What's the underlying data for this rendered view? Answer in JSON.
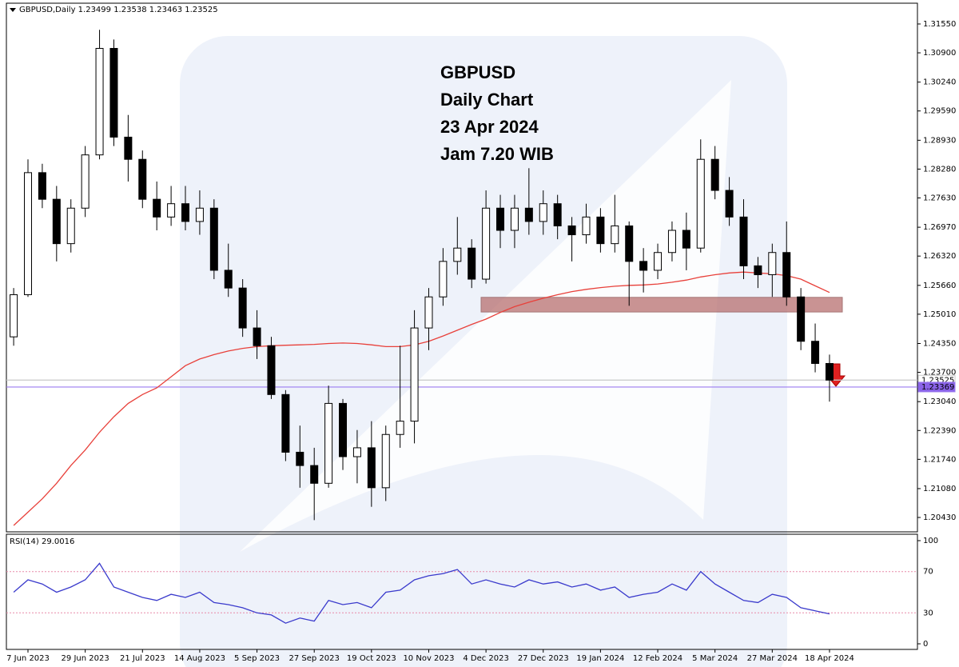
{
  "header": "GBPUSD,Daily  1.23499 1.23538 1.23463 1.23525",
  "chart_data": [
    {
      "type": "candlestick",
      "annotation": [
        "GBPUSD",
        "Daily Chart",
        "23 Apr 2024",
        "Jam 7.20 WIB"
      ],
      "categories": [
        null,
        "7 Jun 2023",
        null,
        null,
        null,
        "29 Jun 2023",
        null,
        null,
        null,
        "21 Jul 2023",
        null,
        null,
        null,
        "14 Aug 2023",
        null,
        null,
        null,
        "5 Sep 2023",
        null,
        null,
        null,
        "27 Sep 2023",
        null,
        null,
        null,
        "19 Oct 2023",
        null,
        null,
        null,
        "10 Nov 2023",
        null,
        null,
        null,
        "4 Dec 2023",
        null,
        null,
        null,
        "27 Dec 2023",
        null,
        null,
        null,
        "19 Jan 2024",
        null,
        null,
        null,
        "12 Feb 2024",
        null,
        null,
        null,
        "5 Mar 2024",
        null,
        null,
        null,
        "27 Mar 2024",
        null,
        null,
        null,
        "18 Apr 2024"
      ],
      "open": [
        1.245,
        1.2545,
        1.282,
        1.276,
        1.266,
        1.274,
        1.286,
        1.31,
        1.29,
        1.285,
        1.276,
        1.272,
        1.275,
        1.271,
        1.274,
        1.26,
        1.256,
        1.247,
        1.243,
        1.232,
        1.219,
        1.216,
        1.212,
        1.23,
        1.218,
        1.22,
        1.211,
        1.223,
        1.226,
        1.247,
        1.254,
        1.262,
        1.265,
        1.258,
        1.274,
        1.269,
        1.274,
        1.271,
        1.275,
        1.27,
        1.268,
        1.272,
        1.266,
        1.27,
        1.262,
        1.26,
        1.264,
        1.269,
        1.265,
        1.285,
        1.278,
        1.272,
        1.261,
        1.259,
        1.264,
        1.254,
        1.244,
        1.239
      ],
      "high": [
        1.256,
        1.285,
        1.284,
        1.279,
        1.276,
        1.288,
        1.3142,
        1.312,
        1.295,
        1.287,
        1.28,
        1.279,
        1.279,
        1.278,
        1.276,
        1.266,
        1.258,
        1.251,
        1.245,
        1.233,
        1.225,
        1.22,
        1.234,
        1.231,
        1.224,
        1.226,
        1.225,
        1.243,
        1.251,
        1.256,
        1.265,
        1.272,
        1.267,
        1.278,
        1.277,
        1.277,
        1.283,
        1.278,
        1.277,
        1.272,
        1.275,
        1.274,
        1.277,
        1.271,
        1.265,
        1.266,
        1.271,
        1.273,
        1.2895,
        1.288,
        1.281,
        1.276,
        1.263,
        1.266,
        1.271,
        1.256,
        1.248,
        1.241
      ],
      "low": [
        1.243,
        1.254,
        1.274,
        1.262,
        1.264,
        1.272,
        1.285,
        1.288,
        1.28,
        1.274,
        1.269,
        1.27,
        1.269,
        1.268,
        1.258,
        1.254,
        1.245,
        1.24,
        1.231,
        1.217,
        1.211,
        1.2037,
        1.211,
        1.215,
        1.212,
        1.2067,
        1.208,
        1.22,
        1.221,
        1.242,
        1.252,
        1.259,
        1.256,
        1.257,
        1.265,
        1.265,
        1.268,
        1.268,
        1.267,
        1.262,
        1.266,
        1.264,
        1.264,
        1.252,
        1.255,
        1.258,
        1.262,
        1.26,
        1.264,
        1.276,
        1.27,
        1.258,
        1.256,
        1.254,
        1.252,
        1.242,
        1.237,
        1.2304
      ],
      "close": [
        1.2545,
        1.282,
        1.276,
        1.266,
        1.274,
        1.286,
        1.31,
        1.29,
        1.285,
        1.276,
        1.272,
        1.275,
        1.271,
        1.274,
        1.26,
        1.256,
        1.247,
        1.243,
        1.232,
        1.219,
        1.216,
        1.212,
        1.23,
        1.218,
        1.22,
        1.211,
        1.223,
        1.226,
        1.247,
        1.254,
        1.262,
        1.265,
        1.258,
        1.274,
        1.269,
        1.274,
        1.271,
        1.275,
        1.27,
        1.268,
        1.272,
        1.266,
        1.27,
        1.262,
        1.26,
        1.264,
        1.269,
        1.265,
        1.285,
        1.278,
        1.272,
        1.261,
        1.259,
        1.264,
        1.254,
        1.244,
        1.239,
        1.23525
      ],
      "up_color": "#ffffff",
      "down_color": "#000000",
      "ma": {
        "color": "#e8403a",
        "values": [
          1.2025,
          1.2055,
          1.2085,
          1.212,
          1.216,
          1.2195,
          1.2235,
          1.227,
          1.23,
          1.232,
          1.2335,
          1.236,
          1.2385,
          1.24,
          1.241,
          1.2418,
          1.2424,
          1.2428,
          1.243,
          1.2431,
          1.2432,
          1.2433,
          1.2435,
          1.2436,
          1.2435,
          1.2432,
          1.2428,
          1.2428,
          1.2432,
          1.244,
          1.2452,
          1.2465,
          1.2478,
          1.249,
          1.2505,
          1.2518,
          1.2528,
          1.2537,
          1.2545,
          1.2552,
          1.2557,
          1.2561,
          1.2564,
          1.2566,
          1.2567,
          1.2569,
          1.2573,
          1.2578,
          1.2585,
          1.259,
          1.2594,
          1.2596,
          1.2594,
          1.2592,
          1.2588,
          1.258,
          1.2565,
          1.255
        ]
      },
      "zone": {
        "values": [
          1.2506,
          1.2539
        ],
        "color": "#b87070"
      },
      "hlines": [
        {
          "value": 1.23525,
          "label": "1.23525",
          "color": "#c8c8c8",
          "box": "#ffffff",
          "text_color": "#000000"
        },
        {
          "value": 1.23369,
          "label": "1.23369",
          "color": "#9b7bf0",
          "box": "#8a63e8",
          "text_color": "#ffffff"
        }
      ],
      "ylim": [
        1.20106,
        1.3191
      ],
      "yticks": [
        {
          "value": 1.3155,
          "label": "1.31550"
        },
        {
          "value": 1.309,
          "label": "1.30900"
        },
        {
          "value": 1.3024,
          "label": "1.30240"
        },
        {
          "value": 1.2959,
          "label": "1.29590"
        },
        {
          "value": 1.2893,
          "label": "1.28930"
        },
        {
          "value": 1.2828,
          "label": "1.28280"
        },
        {
          "value": 1.2763,
          "label": "1.27630"
        },
        {
          "value": 1.2697,
          "label": "1.26970"
        },
        {
          "value": 1.2632,
          "label": "1.26320"
        },
        {
          "value": 1.2566,
          "label": "1.25660"
        },
        {
          "value": 1.2501,
          "label": "1.25010"
        },
        {
          "value": 1.2435,
          "label": "1.24350"
        },
        {
          "value": 1.237,
          "label": "1.23700"
        },
        {
          "value": 1.2304,
          "label": "1.23040"
        },
        {
          "value": 1.2239,
          "label": "1.22390"
        },
        {
          "value": 1.2174,
          "label": "1.21740"
        },
        {
          "value": 1.2108,
          "label": "1.21080"
        },
        {
          "value": 1.2043,
          "label": "1.20430"
        }
      ]
    },
    {
      "type": "line",
      "label": "RSI(14) 29.0016",
      "color": "#3a3acc",
      "values": [
        50,
        62,
        58,
        50,
        55,
        62,
        78,
        55,
        50,
        45,
        42,
        48,
        45,
        50,
        40,
        38,
        35,
        30,
        28,
        20,
        25,
        22,
        42,
        38,
        40,
        35,
        50,
        52,
        62,
        66,
        68,
        72,
        58,
        62,
        58,
        55,
        62,
        58,
        60,
        55,
        58,
        52,
        55,
        45,
        48,
        50,
        58,
        52,
        70,
        58,
        50,
        42,
        40,
        48,
        45,
        35,
        32,
        29.0016
      ],
      "ylim": [
        0,
        100
      ],
      "yticks": [
        100,
        70,
        30,
        0
      ],
      "level_color": "#e88aa8"
    }
  ]
}
